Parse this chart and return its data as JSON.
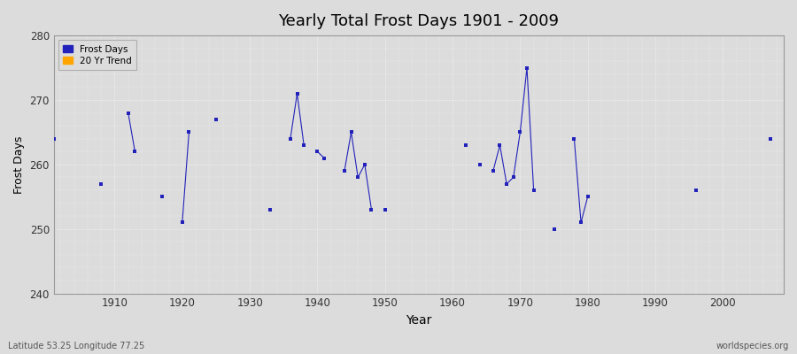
{
  "title": "Yearly Total Frost Days 1901 - 2009",
  "xlabel": "Year",
  "ylabel": "Frost Days",
  "xlim": [
    1901,
    2009
  ],
  "ylim": [
    240,
    280
  ],
  "yticks": [
    240,
    250,
    260,
    270,
    280
  ],
  "xticks": [
    1910,
    1920,
    1930,
    1940,
    1950,
    1960,
    1970,
    1980,
    1990,
    2000
  ],
  "bg_color": "#dcdcdc",
  "plot_bg_color": "#dcdcdc",
  "plot_color": "#2222bb",
  "subtitle": "Latitude 53.25 Longitude 77.25",
  "watermark": "worldspecies.org",
  "legend_labels": [
    "Frost Days",
    "20 Yr Trend"
  ],
  "legend_colors": [
    "#2222bb",
    "#FFA500"
  ],
  "years": [
    1901,
    1908,
    1912,
    1913,
    1917,
    1920,
    1921,
    1925,
    1933,
    1936,
    1937,
    1938,
    1940,
    1941,
    1944,
    1945,
    1946,
    1947,
    1948,
    1950,
    1962,
    1964,
    1966,
    1967,
    1968,
    1969,
    1970,
    1971,
    1972,
    1975,
    1978,
    1979,
    1980,
    1996,
    2007
  ],
  "values": [
    264,
    257,
    268,
    262,
    255,
    251,
    265,
    267,
    253,
    264,
    271,
    263,
    262,
    261,
    259,
    265,
    258,
    260,
    253,
    253,
    263,
    260,
    259,
    263,
    257,
    258,
    265,
    275,
    256,
    250,
    264,
    251,
    255,
    256,
    264
  ],
  "connected_segments": [
    [
      1912,
      1913
    ],
    [
      1920,
      1921
    ],
    [
      1936,
      1937,
      1938
    ],
    [
      1940,
      1941
    ],
    [
      1944,
      1945,
      1946,
      1947,
      1948
    ],
    [
      1966,
      1967,
      1968,
      1969,
      1970,
      1971,
      1972
    ],
    [
      1978,
      1979,
      1980
    ]
  ]
}
